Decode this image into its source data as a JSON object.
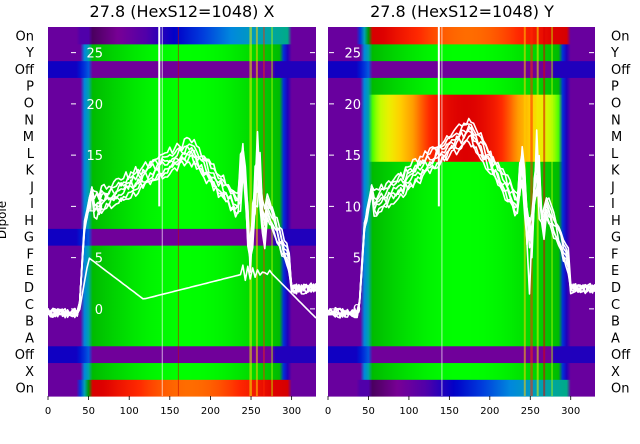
{
  "chart_data": [
    {
      "type": "heatmap",
      "title": "27.8 (HexS12=1048) X",
      "ylabel": "Dipole",
      "xlim": [
        0,
        330
      ],
      "x_ticks": [
        0,
        50,
        100,
        150,
        200,
        250,
        300
      ],
      "rows": [
        "On",
        "X",
        "Off",
        "A",
        "B",
        "C",
        "D",
        "E",
        "F",
        "G",
        "H",
        "I",
        "J",
        "K",
        "L",
        "M",
        "N",
        "O",
        "P",
        "Off",
        "Y",
        "On"
      ],
      "overlay_ylim": [
        -8.5,
        27.5
      ],
      "overlay_ticks": [
        0,
        5,
        10,
        15,
        20,
        25
      ]
    },
    {
      "type": "heatmap",
      "title": "27.8 (HexS12=1048) Y",
      "xlim": [
        0,
        330
      ],
      "x_ticks": [
        0,
        50,
        100,
        150,
        200,
        250,
        300
      ],
      "rows": [
        "On",
        "X",
        "Off",
        "A",
        "B",
        "C",
        "D",
        "E",
        "F",
        "G",
        "H",
        "I",
        "J",
        "K",
        "L",
        "M",
        "N",
        "O",
        "P",
        "Off",
        "Y",
        "On"
      ],
      "overlay_ylim": [
        -8.5,
        27.5
      ],
      "overlay_ticks": [
        0,
        5,
        10,
        15,
        20,
        25
      ]
    }
  ],
  "colors": {
    "overlay": "#ffffff",
    "colormap": "nipy_spectral"
  }
}
